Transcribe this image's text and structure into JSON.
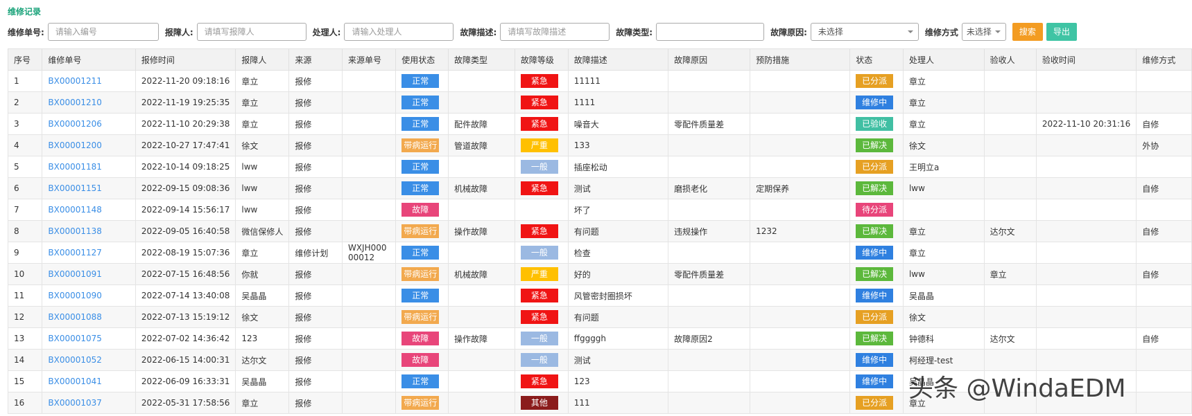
{
  "header": {
    "title": "维修记录"
  },
  "filters": [
    {
      "label": "维修单号:",
      "placeholder": "请输入编号"
    },
    {
      "label": "报障人:",
      "placeholder": "请填写报障人"
    },
    {
      "label": "处理人:",
      "placeholder": "请输入处理人"
    },
    {
      "label": "故障描述:",
      "placeholder": "请填写故障描述"
    },
    {
      "label": "故障类型:"
    },
    {
      "label": "故障原因:",
      "value": "未选择"
    },
    {
      "label": "维修方式",
      "value": "未选择"
    }
  ],
  "buttons": {
    "search": "搜索",
    "export": "导出"
  },
  "watermark": "头条 @WindaEDM",
  "table": {
    "columns": [
      "序号",
      "维修单号",
      "报修时间",
      "报障人",
      "来源",
      "来源单号",
      "使用状态",
      "故障类型",
      "故障等级",
      "故障描述",
      "故障原因",
      "预防措施",
      "状态",
      "处理人",
      "验收人",
      "验收时间",
      "维修方式"
    ],
    "rows": [
      [
        "1",
        "BX00001211",
        "2022-11-20 09:18:16",
        "章立",
        "报修",
        null,
        {
          "text": "正常",
          "color": "#3a8ee6"
        },
        null,
        {
          "text": "紧急",
          "color": "#f01414"
        },
        "11111",
        null,
        null,
        {
          "text": "已分派",
          "color": "#e6a023"
        },
        "章立",
        null,
        null,
        null
      ],
      [
        "2",
        "BX00001210",
        "2022-11-19 19:25:35",
        "章立",
        "报修",
        null,
        {
          "text": "正常",
          "color": "#3a8ee6"
        },
        null,
        {
          "text": "紧急",
          "color": "#f01414"
        },
        "1111",
        null,
        null,
        {
          "text": "维修中",
          "color": "#2f80e0"
        },
        "章立",
        null,
        null,
        null
      ],
      [
        "3",
        "BX00001206",
        "2022-11-10 20:29:38",
        "章立",
        "报修",
        null,
        {
          "text": "正常",
          "color": "#3a8ee6"
        },
        "配件故障",
        {
          "text": "紧急",
          "color": "#f01414"
        },
        "噪音大",
        "零配件质量差",
        null,
        {
          "text": "已验收",
          "color": "#41bfa3"
        },
        "章立",
        null,
        "2022-11-10 20:31:16",
        "自修"
      ],
      [
        "4",
        "BX00001200",
        "2022-10-27 17:47:41",
        "徐文",
        "报修",
        null,
        {
          "text": "带病运行",
          "color": "#f2a94e"
        },
        "管道故障",
        {
          "text": "严重",
          "color": "#ffc000"
        },
        "133",
        null,
        null,
        {
          "text": "已解决",
          "color": "#5cb83c"
        },
        "徐文",
        null,
        null,
        "外协"
      ],
      [
        "5",
        "BX00001181",
        "2022-10-14 09:18:25",
        "lww",
        "报修",
        null,
        {
          "text": "正常",
          "color": "#3a8ee6"
        },
        null,
        {
          "text": "一般",
          "color": "#9bb9e2"
        },
        "插座松动",
        null,
        null,
        {
          "text": "已分派",
          "color": "#e6a023"
        },
        "王明立a",
        null,
        null,
        null
      ],
      [
        "6",
        "BX00001151",
        "2022-09-15 09:08:36",
        "lww",
        "报修",
        null,
        {
          "text": "正常",
          "color": "#3a8ee6"
        },
        "机械故障",
        {
          "text": "紧急",
          "color": "#f01414"
        },
        "测试",
        "磨损老化",
        "定期保养",
        {
          "text": "已解决",
          "color": "#5cb83c"
        },
        "lww",
        null,
        null,
        "自修"
      ],
      [
        "7",
        "BX00001148",
        "2022-09-14 15:56:17",
        "lww",
        "报修",
        null,
        {
          "text": "故障",
          "color": "#e8457a"
        },
        null,
        null,
        "坏了",
        null,
        null,
        {
          "text": "待分派",
          "color": "#e8457a"
        },
        null,
        null,
        null,
        null
      ],
      [
        "8",
        "BX00001138",
        "2022-09-05 16:40:58",
        "微信保修人",
        "报修",
        null,
        {
          "text": "带病运行",
          "color": "#f2a94e"
        },
        "操作故障",
        {
          "text": "紧急",
          "color": "#f01414"
        },
        "有问题",
        "违规操作",
        "1232",
        {
          "text": "已解决",
          "color": "#5cb83c"
        },
        "章立",
        "达尔文",
        null,
        "自修"
      ],
      [
        "9",
        "BX00001127",
        "2022-08-19 15:07:36",
        "章立",
        "维修计划",
        "WXJH00000012",
        {
          "text": "正常",
          "color": "#3a8ee6"
        },
        null,
        {
          "text": "一般",
          "color": "#9bb9e2"
        },
        "检查",
        null,
        null,
        {
          "text": "维修中",
          "color": "#2f80e0"
        },
        "章立",
        null,
        null,
        null
      ],
      [
        "10",
        "BX00001091",
        "2022-07-15 16:48:56",
        "你就",
        "报修",
        null,
        {
          "text": "带病运行",
          "color": "#f2a94e"
        },
        "机械故障",
        {
          "text": "严重",
          "color": "#ffc000"
        },
        "好的",
        "零配件质量差",
        null,
        {
          "text": "已解决",
          "color": "#5cb83c"
        },
        "lww",
        "章立",
        null,
        "自修"
      ],
      [
        "11",
        "BX00001090",
        "2022-07-14 13:40:08",
        "吴晶晶",
        "报修",
        null,
        {
          "text": "正常",
          "color": "#3a8ee6"
        },
        null,
        {
          "text": "紧急",
          "color": "#f01414"
        },
        "风管密封圈损坏",
        null,
        null,
        {
          "text": "维修中",
          "color": "#2f80e0"
        },
        "吴晶晶",
        null,
        null,
        null
      ],
      [
        "12",
        "BX00001088",
        "2022-07-13 15:19:12",
        "徐文",
        "报修",
        null,
        {
          "text": "带病运行",
          "color": "#f2a94e"
        },
        null,
        {
          "text": "紧急",
          "color": "#f01414"
        },
        "有问题",
        null,
        null,
        {
          "text": "已分派",
          "color": "#e6a023"
        },
        "徐文",
        null,
        null,
        null
      ],
      [
        "13",
        "BX00001075",
        "2022-07-02 14:36:42",
        "123",
        "报修",
        null,
        {
          "text": "故障",
          "color": "#e8457a"
        },
        "操作故障",
        {
          "text": "一般",
          "color": "#9bb9e2"
        },
        "ffggggh",
        "故障原因2",
        null,
        {
          "text": "已解决",
          "color": "#5cb83c"
        },
        "钟德科",
        "达尔文",
        null,
        "自修"
      ],
      [
        "14",
        "BX00001052",
        "2022-06-15 14:00:31",
        "达尔文",
        "报修",
        null,
        {
          "text": "故障",
          "color": "#e8457a"
        },
        null,
        {
          "text": "一般",
          "color": "#9bb9e2"
        },
        "测试",
        null,
        null,
        {
          "text": "维修中",
          "color": "#2f80e0"
        },
        "柯经理-test",
        null,
        null,
        null
      ],
      [
        "15",
        "BX00001041",
        "2022-06-09 16:33:31",
        "吴晶晶",
        "报修",
        null,
        {
          "text": "正常",
          "color": "#3a8ee6"
        },
        null,
        {
          "text": "紧急",
          "color": "#f01414"
        },
        "123",
        null,
        null,
        {
          "text": "维修中",
          "color": "#2f80e0"
        },
        "吴晶晶",
        null,
        null,
        null
      ],
      [
        "16",
        "BX00001037",
        "2022-05-31 17:58:56",
        "章立",
        "报修",
        null,
        {
          "text": "带病运行",
          "color": "#f2a94e"
        },
        null,
        {
          "text": "其他",
          "color": "#8b1c1c"
        },
        "111",
        null,
        null,
        {
          "text": "已分派",
          "color": "#e6a023"
        },
        "章立",
        null,
        null,
        null
      ]
    ]
  }
}
